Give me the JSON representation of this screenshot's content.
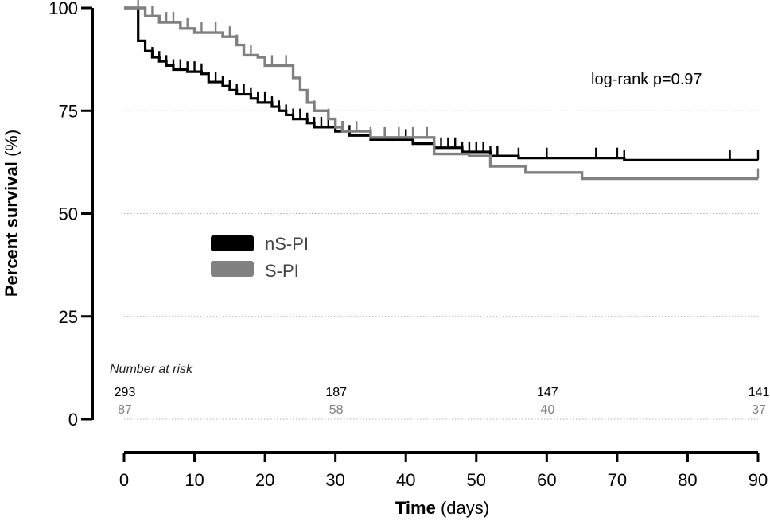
{
  "chart_data": {
    "type": "line",
    "subtype": "kaplan-meier",
    "title": "",
    "xlabel_bold": "Time",
    "xlabel_rest": " (days)",
    "ylabel_bold": "Percent survival",
    "ylabel_rest": " (%)",
    "xlim": [
      0,
      90
    ],
    "ylim": [
      0,
      100
    ],
    "xticks": [
      0,
      10,
      20,
      30,
      40,
      50,
      60,
      70,
      80,
      90
    ],
    "yticks": [
      0,
      25,
      50,
      75,
      100
    ],
    "grid": "horizontal-dotted",
    "legend_position": "center-left",
    "annotation": "log-rank p=0.97",
    "series": [
      {
        "name": "nS-PI",
        "color": "#000000",
        "steps": [
          [
            0,
            100
          ],
          [
            2,
            92
          ],
          [
            3,
            89.5
          ],
          [
            4,
            88
          ],
          [
            5,
            87
          ],
          [
            6,
            86
          ],
          [
            7,
            85
          ],
          [
            9,
            84.5
          ],
          [
            11,
            84
          ],
          [
            12,
            82
          ],
          [
            14,
            81
          ],
          [
            15,
            80
          ],
          [
            16,
            79
          ],
          [
            18,
            78
          ],
          [
            19,
            77
          ],
          [
            21,
            76
          ],
          [
            22,
            75
          ],
          [
            23,
            74
          ],
          [
            24,
            73
          ],
          [
            26,
            72
          ],
          [
            27,
            71
          ],
          [
            30,
            70
          ],
          [
            32,
            69
          ],
          [
            35,
            68
          ],
          [
            41,
            67
          ],
          [
            44,
            66
          ],
          [
            48,
            65
          ],
          [
            52,
            64
          ],
          [
            56,
            63.5
          ],
          [
            71,
            63
          ],
          [
            90,
            63
          ]
        ],
        "censor": [
          3,
          4,
          5,
          6,
          7,
          8,
          9,
          10,
          11,
          12,
          13,
          14,
          15,
          16,
          17,
          18,
          19,
          20,
          21,
          22,
          23,
          24,
          25,
          26,
          27,
          28,
          29,
          30,
          31,
          32,
          35,
          37,
          40,
          44,
          45,
          46,
          47,
          48,
          49,
          50,
          51,
          52,
          53,
          56,
          60,
          67,
          70,
          71,
          86,
          90
        ]
      },
      {
        "name": "S-PI",
        "color": "#808080",
        "steps": [
          [
            0,
            100
          ],
          [
            3,
            98
          ],
          [
            5,
            96.5
          ],
          [
            8,
            95
          ],
          [
            10,
            94
          ],
          [
            14,
            93
          ],
          [
            16,
            91
          ],
          [
            17,
            88.5
          ],
          [
            19,
            88
          ],
          [
            20,
            86
          ],
          [
            24,
            83
          ],
          [
            25,
            80
          ],
          [
            26,
            77
          ],
          [
            27,
            75
          ],
          [
            29,
            73
          ],
          [
            30,
            71
          ],
          [
            31,
            70
          ],
          [
            35,
            68.5
          ],
          [
            44,
            64.5
          ],
          [
            49,
            64
          ],
          [
            52,
            61.5
          ],
          [
            57,
            60
          ],
          [
            65,
            58.5
          ],
          [
            90,
            58.5
          ]
        ],
        "censor": [
          2,
          4,
          6,
          7,
          9,
          11,
          13,
          15,
          16,
          18,
          21,
          23,
          26,
          27,
          29,
          31,
          33,
          35,
          37,
          39,
          41,
          43,
          90
        ]
      }
    ],
    "risk_table": {
      "title": "Number at risk",
      "times": [
        0,
        30,
        60,
        90
      ],
      "rows": [
        {
          "name": "nS-PI",
          "color": "#000000",
          "values": [
            "293",
            "187",
            "147",
            "141"
          ]
        },
        {
          "name": "S-PI",
          "color": "#808080",
          "values": [
            "87",
            "58",
            "40",
            "37"
          ]
        }
      ]
    }
  }
}
